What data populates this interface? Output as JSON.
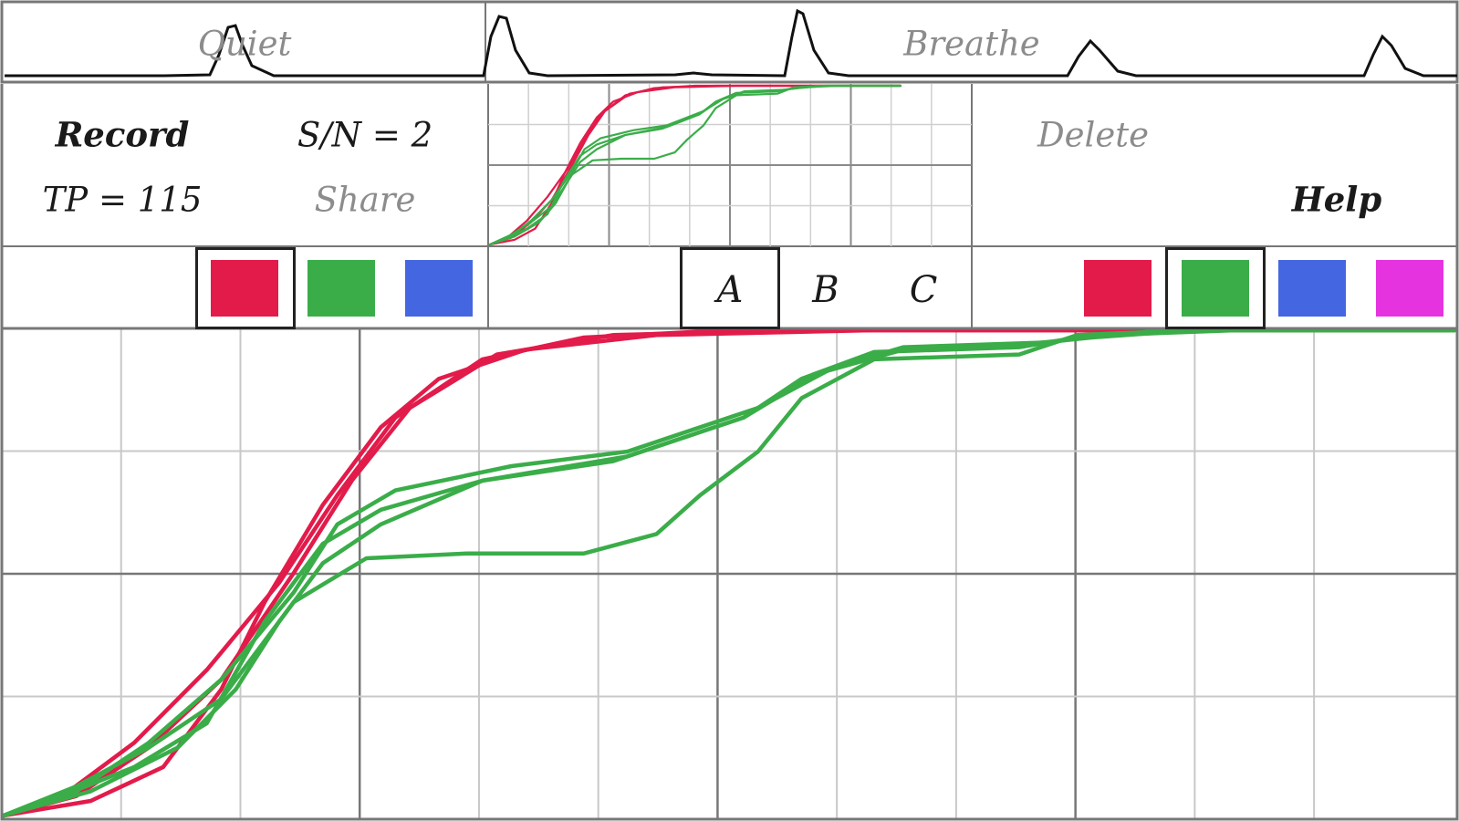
{
  "top_bar": {
    "quiet_label": "Quiet",
    "breathe_label": "Breathe"
  },
  "controls": {
    "record_label": "Record",
    "sn_readout": "S/N = 2",
    "tp_readout": "TP = 115",
    "share_label": "Share",
    "delete_label": "Delete",
    "help_label": "Help"
  },
  "left_palette": {
    "colors": [
      "#e21b4a",
      "#3aad49",
      "#4466e0"
    ],
    "selected_index": 0
  },
  "tabs": {
    "items": [
      "A",
      "B",
      "C"
    ],
    "selected_index": 0
  },
  "right_palette": {
    "colors": [
      "#e21b4a",
      "#3aad49",
      "#4466e0",
      "#e633e0"
    ],
    "selected_index": 1
  },
  "series_colors": {
    "red": "#e21b4a",
    "green": "#3aad49"
  }
}
